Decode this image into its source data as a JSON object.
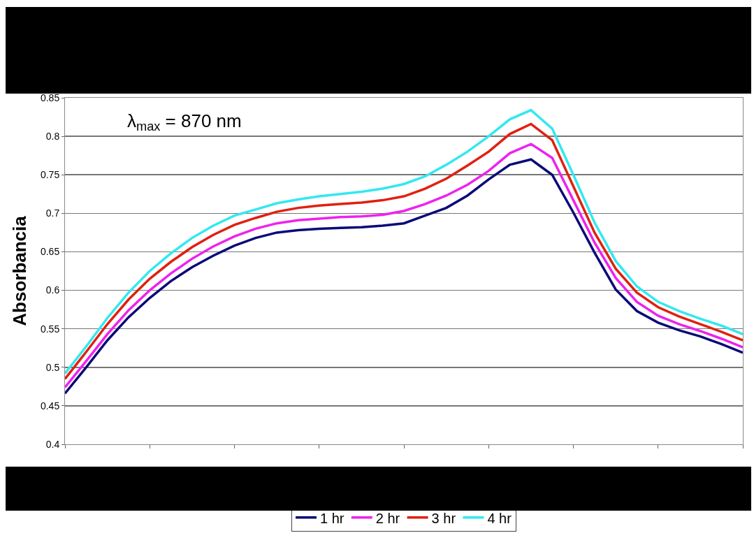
{
  "chart_data": {
    "type": "line",
    "ylabel": "Absorbancia",
    "annotations": [
      "λ$_{max}$ = 870 nm"
    ],
    "categories": [
      null,
      null,
      null,
      null,
      null,
      null,
      null,
      null,
      null,
      null,
      null,
      null,
      null,
      null,
      null,
      null,
      null,
      null,
      null,
      null,
      null,
      null,
      null,
      null,
      null,
      null,
      null,
      null,
      null,
      null,
      null,
      null,
      null
    ],
    "series": [
      {
        "name": "1 hr",
        "color": "#0a0a78",
        "values": [
          0.466,
          0.5,
          0.535,
          0.565,
          0.59,
          0.612,
          0.63,
          0.645,
          0.658,
          0.668,
          0.675,
          0.678,
          0.68,
          0.681,
          0.682,
          0.684,
          0.687,
          0.697,
          0.707,
          0.723,
          0.744,
          0.763,
          0.77,
          0.75,
          0.701,
          0.649,
          0.601,
          0.573,
          0.558,
          0.548,
          0.54,
          0.53,
          0.519
        ]
      },
      {
        "name": "2 hr",
        "color": "#ee22ee",
        "values": [
          0.474,
          0.508,
          0.543,
          0.574,
          0.6,
          0.622,
          0.641,
          0.657,
          0.67,
          0.68,
          0.687,
          0.691,
          0.693,
          0.695,
          0.696,
          0.698,
          0.703,
          0.712,
          0.723,
          0.737,
          0.755,
          0.778,
          0.79,
          0.772,
          0.717,
          0.662,
          0.616,
          0.585,
          0.567,
          0.556,
          0.547,
          0.537,
          0.526
        ]
      },
      {
        "name": "3 hr",
        "color": "#e02010",
        "values": [
          0.485,
          0.52,
          0.556,
          0.588,
          0.615,
          0.637,
          0.656,
          0.672,
          0.685,
          0.694,
          0.702,
          0.707,
          0.71,
          0.712,
          0.714,
          0.717,
          0.722,
          0.732,
          0.745,
          0.762,
          0.78,
          0.803,
          0.816,
          0.795,
          0.735,
          0.675,
          0.628,
          0.597,
          0.578,
          0.566,
          0.556,
          0.546,
          0.535
        ]
      },
      {
        "name": "4 hr",
        "color": "#33e8f0",
        "values": [
          0.492,
          0.527,
          0.564,
          0.597,
          0.625,
          0.648,
          0.668,
          0.684,
          0.697,
          0.705,
          0.713,
          0.718,
          0.722,
          0.725,
          0.728,
          0.732,
          0.738,
          0.748,
          0.763,
          0.78,
          0.8,
          0.822,
          0.834,
          0.81,
          0.75,
          0.688,
          0.638,
          0.605,
          0.585,
          0.573,
          0.563,
          0.554,
          0.543
        ]
      }
    ],
    "ylim": [
      0.4,
      0.85
    ],
    "yticks": [
      0.4,
      0.45,
      0.5,
      0.55,
      0.6,
      0.65,
      0.7,
      0.75,
      0.8,
      0.85
    ],
    "grid": "y",
    "legend": "bottom",
    "tick_labels": "y",
    "marker": "none",
    "line_style": "solid"
  }
}
